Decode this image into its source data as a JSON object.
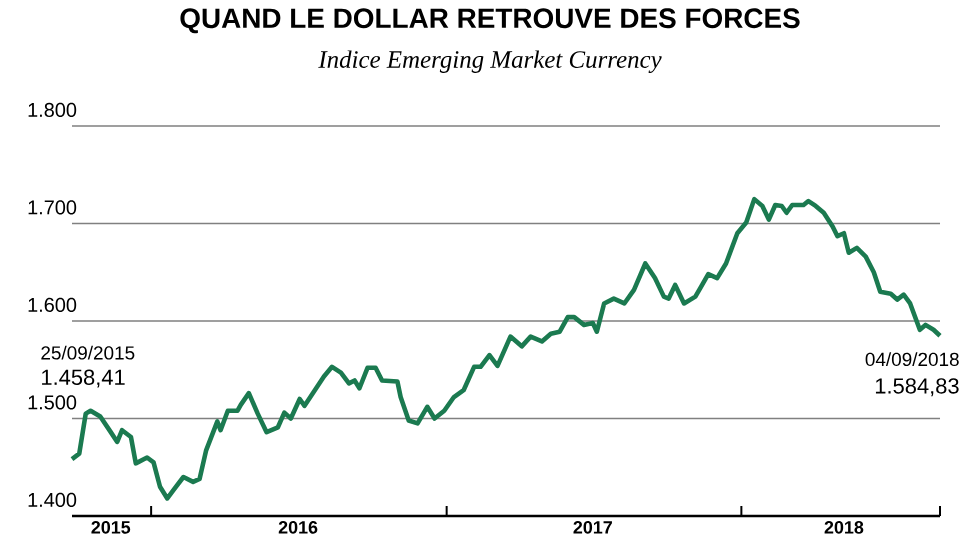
{
  "chart_data": {
    "type": "line",
    "title": "QUAND LE DOLLAR RETROUVE DES FORCES",
    "subtitle": "Indice Emerging Market Currency",
    "x": [
      "2015-09-25",
      "2015-10-04",
      "2015-10-12",
      "2015-10-18",
      "2015-10-30",
      "2015-11-12",
      "2015-11-20",
      "2015-11-26",
      "2015-12-07",
      "2015-12-13",
      "2015-12-27",
      "2016-01-04",
      "2016-01-12",
      "2016-01-21",
      "2016-01-30",
      "2016-02-10",
      "2016-02-22",
      "2016-03-01",
      "2016-03-09",
      "2016-03-23",
      "2016-03-27",
      "2016-04-05",
      "2016-04-17",
      "2016-04-21",
      "2016-05-01",
      "2016-05-12",
      "2016-05-23",
      "2016-06-06",
      "2016-06-14",
      "2016-06-22",
      "2016-07-03",
      "2016-07-09",
      "2016-07-21",
      "2016-08-02",
      "2016-08-12",
      "2016-08-23",
      "2016-09-02",
      "2016-09-09",
      "2016-09-15",
      "2016-09-25",
      "2016-10-05",
      "2016-10-13",
      "2016-11-01",
      "2016-11-05",
      "2016-11-15",
      "2016-11-26",
      "2016-12-08",
      "2016-12-17",
      "2016-12-29",
      "2017-01-10",
      "2017-01-22",
      "2017-02-04",
      "2017-02-12",
      "2017-02-23",
      "2017-03-05",
      "2017-03-21",
      "2017-04-04",
      "2017-04-15",
      "2017-04-29",
      "2017-05-10",
      "2017-05-21",
      "2017-05-31",
      "2017-06-08",
      "2017-06-20",
      "2017-07-01",
      "2017-07-06",
      "2017-07-15",
      "2017-07-27",
      "2017-08-09",
      "2017-08-21",
      "2017-09-04",
      "2017-09-16",
      "2017-09-27",
      "2017-10-03",
      "2017-10-11",
      "2017-10-22",
      "2017-11-05",
      "2017-11-12",
      "2017-11-21",
      "2017-12-02",
      "2017-12-13",
      "2017-12-27",
      "2018-01-07",
      "2018-01-17",
      "2018-01-27",
      "2018-02-04",
      "2018-02-12",
      "2018-02-20",
      "2018-02-26",
      "2018-03-05",
      "2018-03-19",
      "2018-03-25",
      "2018-04-03",
      "2018-04-13",
      "2018-04-24",
      "2018-04-30",
      "2018-05-08",
      "2018-05-14",
      "2018-05-24",
      "2018-06-04",
      "2018-06-14",
      "2018-06-22",
      "2018-07-05",
      "2018-07-13",
      "2018-07-21",
      "2018-07-29",
      "2018-08-10",
      "2018-08-17",
      "2018-08-27",
      "2018-09-04"
    ],
    "series": [
      {
        "color": "#1b7a50",
        "values": [
          1458.41,
          1464,
          1505,
          1508,
          1502,
          1486,
          1476,
          1488,
          1481,
          1454,
          1460,
          1455,
          1430,
          1418,
          1428,
          1440,
          1435,
          1438,
          1467,
          1497,
          1488,
          1508,
          1508,
          1514,
          1526,
          1505,
          1486,
          1491,
          1506,
          1500,
          1520,
          1513,
          1528,
          1543,
          1553,
          1547,
          1536,
          1539,
          1531,
          1552,
          1552,
          1539,
          1538,
          1522,
          1498,
          1495,
          1512,
          1500,
          1508,
          1522,
          1529,
          1553,
          1553,
          1565,
          1554,
          1584,
          1574,
          1584,
          1579,
          1587,
          1589,
          1604,
          1604,
          1596,
          1598,
          1589,
          1618,
          1623,
          1618,
          1632,
          1659,
          1644,
          1625,
          1623,
          1637,
          1618,
          1625,
          1635,
          1648,
          1644,
          1659,
          1690,
          1701,
          1725,
          1718,
          1704,
          1719,
          1718,
          1711,
          1719,
          1719,
          1723,
          1718,
          1711,
          1697,
          1687,
          1690,
          1670,
          1675,
          1666,
          1650,
          1630,
          1628,
          1622,
          1627,
          1618,
          1591,
          1596,
          1591,
          1584.83
        ]
      }
    ],
    "xlim": [
      "2015-09-25",
      "2018-09-04"
    ],
    "xticks": [
      {
        "value": "2015-11-12",
        "label": "2015"
      },
      {
        "value": "2016-01-01",
        "label": null
      },
      {
        "value": "2016-07-01",
        "label": "2016"
      },
      {
        "value": "2017-01-01",
        "label": null
      },
      {
        "value": "2017-07-01",
        "label": "2017"
      },
      {
        "value": "2018-01-01",
        "label": null
      },
      {
        "value": "2018-05-08",
        "label": "2018"
      },
      {
        "value": "2018-09-04",
        "label": null
      }
    ],
    "ylim": [
      1400,
      1800
    ],
    "yticks": [
      {
        "value": 1400,
        "label": "1.400"
      },
      {
        "value": 1500,
        "label": "1.500"
      },
      {
        "value": 1600,
        "label": "1.600"
      },
      {
        "value": 1700,
        "label": "1.700"
      },
      {
        "value": 1800,
        "label": "1.800"
      }
    ],
    "grid": "y",
    "annotations": [
      "25/09/2015",
      "1.458,41",
      {
        "text": "04/09/2018",
        "x": "2018-09-04",
        "y": 1584.83
      },
      {
        "text": "1.584,83",
        "x": "2018-09-04",
        "y": 1584.83
      }
    ]
  }
}
